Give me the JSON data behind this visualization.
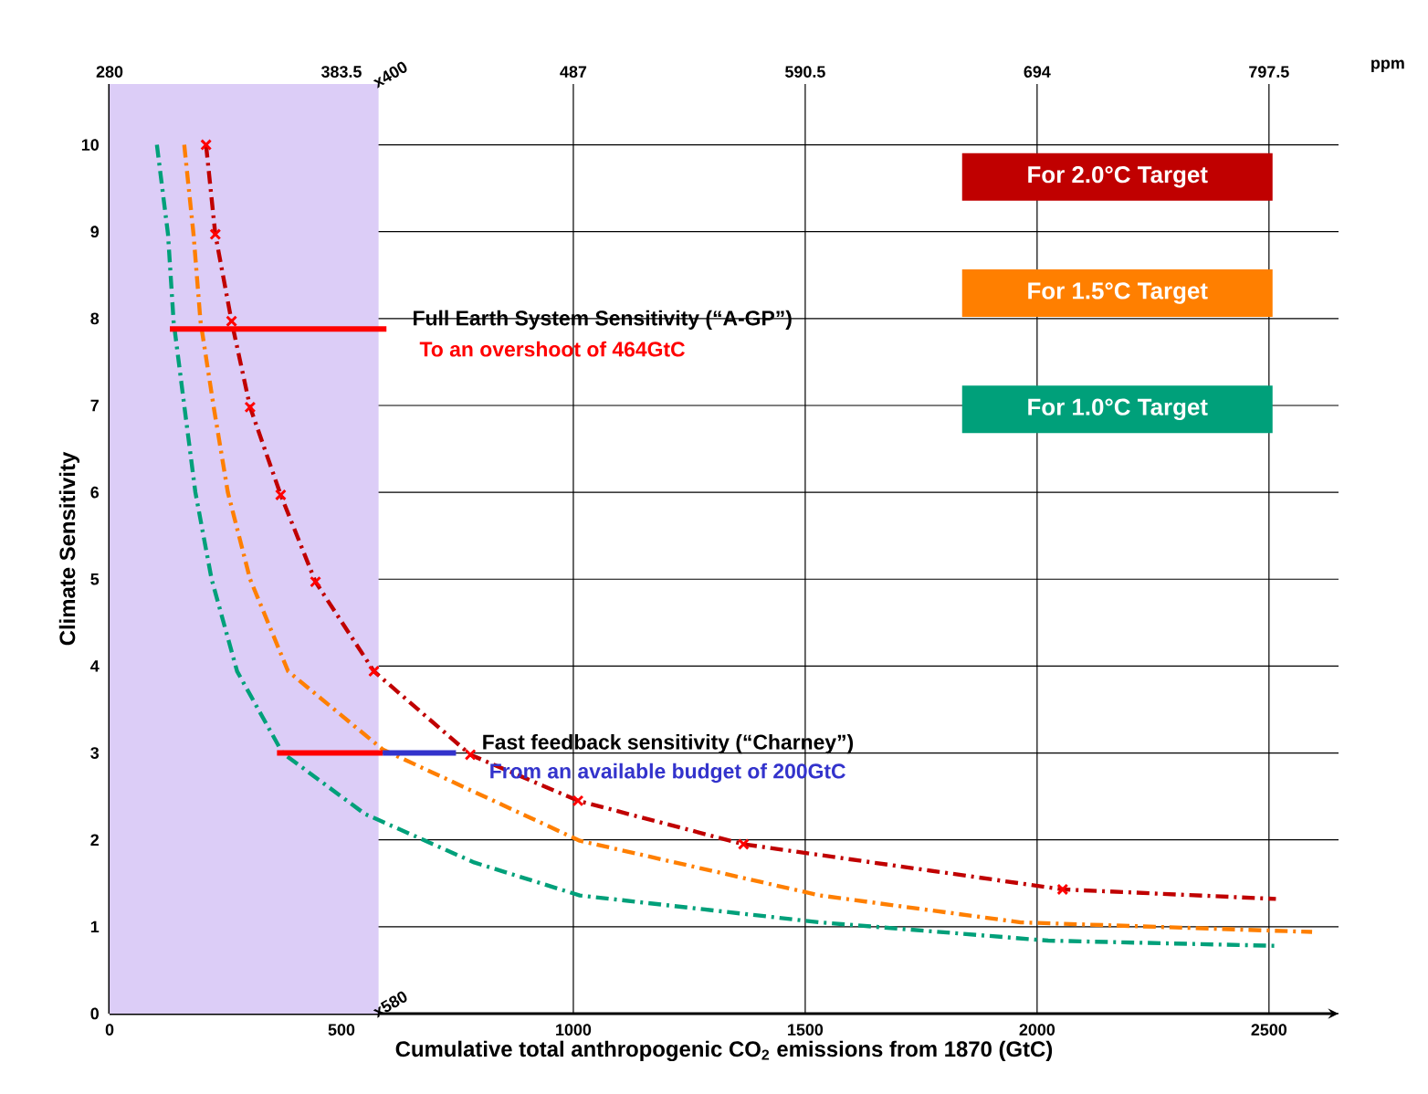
{
  "chart_data": {
    "type": "line",
    "xlabel": "Cumulative total anthropogenic CO$_{2}$ emissions from 1870  (GtC)",
    "ylabel": "Climate Sensitivity",
    "x2label": "ppm",
    "xlim": [
      0,
      2650
    ],
    "ylim": [
      0,
      10.7
    ],
    "xticks": [
      0,
      500,
      1000,
      1500,
      2000,
      2500
    ],
    "yticks": [
      0,
      1,
      2,
      3,
      4,
      5,
      6,
      7,
      8,
      9,
      10
    ],
    "x2lim": [
      280,
      828.55
    ],
    "x2ticks": [
      280,
      383.5,
      487,
      590.5,
      694,
      797.5
    ],
    "grid": true,
    "legend": "top right",
    "line_style": "dashdot",
    "marker": "none",
    "bands": [
      {
        "axis": "x",
        "from": 0,
        "to": 580,
        "color": "#dccdf7"
      }
    ],
    "annotations": [
      {
        "text": "Full Earth System Sensitivity  (“A-GP”)",
        "x": 597,
        "y": 7.88
      },
      "To an overshoot of 464GtC",
      {
        "text": "Fast feedback sensitivity  (“Charney”)",
        "x": 747,
        "y": 3
      },
      "From an available budget of 200GtC",
      {
        "text": "x400",
        "x": 580,
        "y": 10.7
      },
      {
        "text": "x580",
        "x": 580,
        "y": 0
      }
    ],
    "series": [
      {
        "name": "For 2.0°C Target",
        "color": "#c00000",
        "x": [
          208,
          228,
          263,
          303,
          369,
          444,
          570,
          778,
          1010,
          1367,
          2055,
          2515
        ],
        "values": [
          10,
          8.97,
          7.97,
          6.98,
          5.97,
          4.97,
          3.94,
          2.98,
          2.45,
          1.95,
          1.43,
          1.32
        ]
      },
      {
        "name": "For 1.5°C Target",
        "color": "#ff7f00",
        "x": [
          161,
          181,
          196,
          224,
          255,
          303,
          385,
          589,
          1014,
          1532,
          1965,
          2593
        ],
        "values": [
          10,
          8.97,
          7.97,
          7,
          6,
          5,
          3.94,
          3.04,
          1.99,
          1.36,
          1.05,
          0.94
        ]
      },
      {
        "name": "For 1.0°C Target",
        "color": "#00a07a",
        "x": [
          102,
          126,
          138,
          161,
          185,
          220,
          275,
          373,
          550,
          786,
          1014,
          1532,
          2024,
          2515
        ],
        "values": [
          10,
          8.97,
          7.97,
          7,
          6,
          5,
          3.94,
          3,
          2.3,
          1.74,
          1.36,
          1.05,
          0.84,
          0.78
        ]
      },
      {
        "type": "scatter",
        "marker": "cross",
        "color": "#ff0000",
        "x": [
          208,
          228,
          263,
          303,
          369,
          444,
          570,
          778,
          1010,
          1367,
          2055
        ],
        "values": [
          10,
          8.97,
          7.97,
          6.98,
          5.97,
          4.97,
          3.94,
          2.98,
          2.45,
          1.95,
          1.43
        ]
      },
      {
        "type": "line",
        "line_style": "solid",
        "color": "#ff0000",
        "x": [
          130,
          597
        ],
        "values": [
          7.88,
          7.88
        ]
      },
      {
        "type": "line",
        "line_style": "solid",
        "color": "#ff0000",
        "x": [
          361,
          589
        ],
        "values": [
          3,
          3
        ]
      },
      {
        "type": "line",
        "line_style": "solid",
        "color": "#3333cc",
        "x": [
          589,
          747
        ],
        "values": [
          3,
          3
        ]
      }
    ]
  }
}
